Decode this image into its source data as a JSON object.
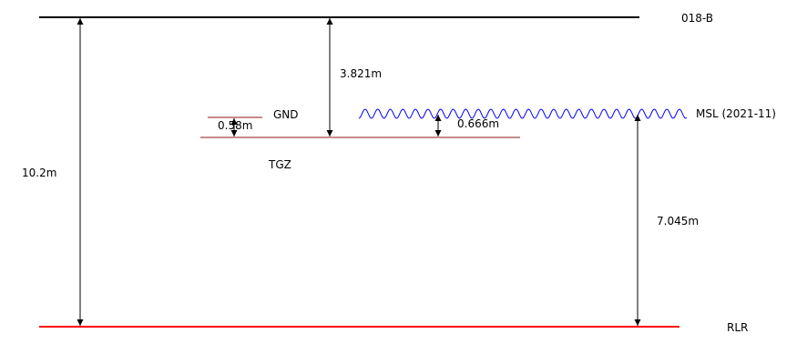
{
  "levels": {
    "benchmark": {
      "label": "018-B",
      "color": "#000000"
    },
    "ground": {
      "label": "GND",
      "color": "#8b1a1a"
    },
    "tide_gauge_zero": {
      "label": "TGZ",
      "color": "#8b1a1a"
    },
    "mean_sea_level": {
      "label": "MSL (2021-11)",
      "color": "#0000ff"
    },
    "reference_low": {
      "label": "RLR",
      "color": "#ff0000"
    }
  },
  "measurements": {
    "benchmark_to_rlr": "10.2m",
    "benchmark_to_tgz": "3.821m",
    "gnd_to_tgz": "0.58m",
    "msl_to_tgz": "0.666m",
    "msl_to_rlr": "7.045m"
  }
}
